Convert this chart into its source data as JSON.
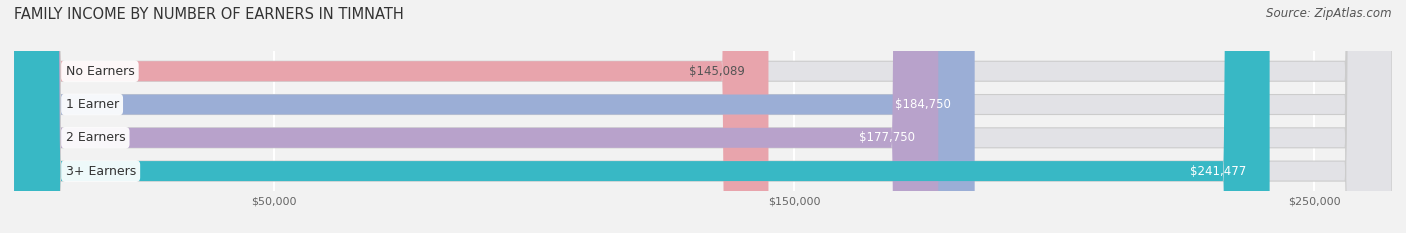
{
  "title": "FAMILY INCOME BY NUMBER OF EARNERS IN TIMNATH",
  "source": "Source: ZipAtlas.com",
  "categories": [
    "No Earners",
    "1 Earner",
    "2 Earners",
    "3+ Earners"
  ],
  "values": [
    145089,
    184750,
    177750,
    241477
  ],
  "bar_colors": [
    "#E8A4AC",
    "#9BAED6",
    "#B8A2CB",
    "#38B8C5"
  ],
  "value_colors": [
    "#555555",
    "#ffffff",
    "#ffffff",
    "#ffffff"
  ],
  "bar_height": 0.6,
  "background_color": "#f2f2f2",
  "bar_bg_color": "#e2e2e6",
  "xmin": 0,
  "xmax": 265000,
  "xticks": [
    50000,
    150000,
    250000
  ],
  "xticklabels": [
    "$50,000",
    "$150,000",
    "$250,000"
  ],
  "title_fontsize": 10.5,
  "source_fontsize": 8.5,
  "value_fontsize": 8.5,
  "category_fontsize": 9
}
